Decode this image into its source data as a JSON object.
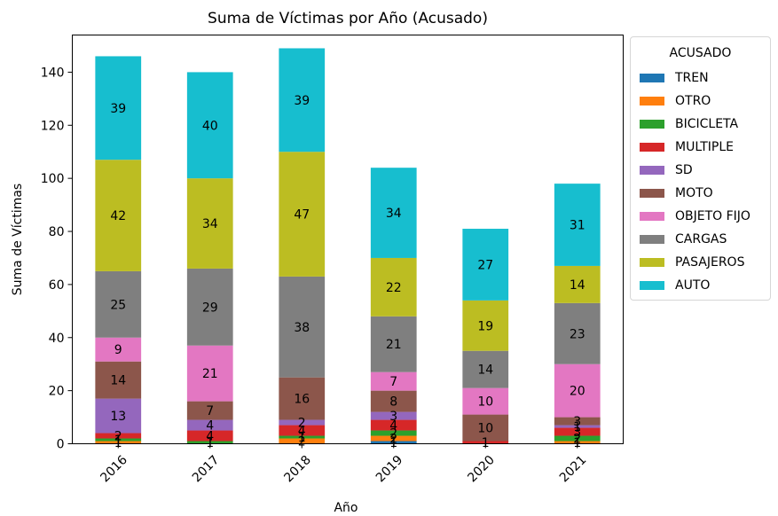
{
  "chart_data": {
    "type": "bar",
    "stacked": true,
    "title": "Suma de Víctimas por Año (Acusado)",
    "xlabel": "Año",
    "ylabel": "Suma de Víctimas",
    "ylim": [
      0,
      154
    ],
    "yticks": [
      0,
      20,
      40,
      60,
      80,
      100,
      120,
      140
    ],
    "categories": [
      "2016",
      "2017",
      "2018",
      "2019",
      "2020",
      "2021"
    ],
    "legend_title": "ACUSADO",
    "legend_position": "outside-right",
    "grid": false,
    "series": [
      {
        "name": "TREN",
        "color": "#1f77b4",
        "values": [
          0,
          0,
          0,
          1,
          0,
          0
        ]
      },
      {
        "name": "OTRO",
        "color": "#ff7f0e",
        "values": [
          1,
          0,
          2,
          2,
          0,
          1
        ]
      },
      {
        "name": "BICICLETA",
        "color": "#2ca02c",
        "values": [
          1,
          1,
          1,
          2,
          0,
          2
        ]
      },
      {
        "name": "MULTIPLE",
        "color": "#d62728",
        "values": [
          2,
          4,
          4,
          4,
          1,
          3
        ]
      },
      {
        "name": "SD",
        "color": "#9467bd",
        "values": [
          13,
          4,
          2,
          3,
          0,
          1
        ]
      },
      {
        "name": "MOTO",
        "color": "#8c564b",
        "values": [
          14,
          7,
          16,
          8,
          10,
          3
        ]
      },
      {
        "name": "OBJETO FIJO",
        "color": "#e377c2",
        "values": [
          9,
          21,
          0,
          7,
          10,
          20
        ]
      },
      {
        "name": "CARGAS",
        "color": "#7f7f7f",
        "values": [
          25,
          29,
          38,
          21,
          14,
          23
        ]
      },
      {
        "name": "PASAJEROS",
        "color": "#bcbd22",
        "values": [
          42,
          34,
          47,
          22,
          19,
          14
        ]
      },
      {
        "name": "AUTO",
        "color": "#17becf",
        "values": [
          39,
          40,
          39,
          34,
          27,
          31
        ]
      }
    ]
  }
}
